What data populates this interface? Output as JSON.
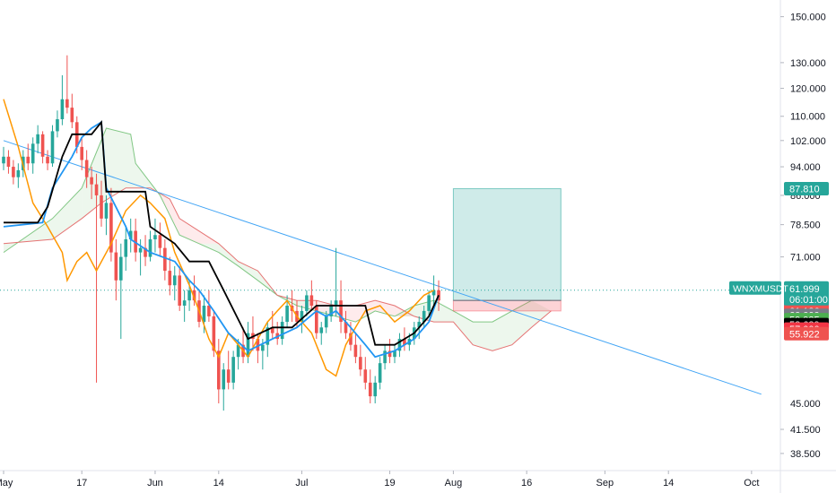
{
  "chart_data": {
    "type": "candlestick",
    "symbol": "WNXMUSDT",
    "countdown": "06:01:00",
    "y_scale": "log",
    "ylim": [
      36.5,
      158
    ],
    "x_tick_labels": [
      {
        "label": "May",
        "day": 0
      },
      {
        "label": "17",
        "day": 16
      },
      {
        "label": "Jun",
        "day": 31
      },
      {
        "label": "14",
        "day": 44
      },
      {
        "label": "Jul",
        "day": 61
      },
      {
        "label": "19",
        "day": 79
      },
      {
        "label": "Aug",
        "day": 92
      },
      {
        "label": "16",
        "day": 107
      },
      {
        "label": "Sep",
        "day": 123
      },
      {
        "label": "14",
        "day": 136
      },
      {
        "label": "Oct",
        "day": 153
      }
    ],
    "y_tick_labels": [
      "150.000",
      "130.000",
      "120.000",
      "110.000",
      "102.000",
      "94.000",
      "86.000",
      "78.500",
      "71.000",
      "41.500",
      "38.500"
    ],
    "price_badges": [
      {
        "label": "87.810",
        "value": 87.81,
        "color": "#26a69a"
      },
      {
        "label": "61.999",
        "value": 62.8,
        "color": "#ff9800"
      },
      {
        "label": "61.182",
        "value": 61.182,
        "color": "#2196f3"
      },
      {
        "label": "61.136",
        "value": 60.0,
        "color": "#ef5350"
      },
      {
        "label": "60.000",
        "value": 59.2,
        "color": "#787b86"
      },
      {
        "label": "59.935",
        "value": 58.4,
        "color": "#4caf50"
      },
      {
        "label": "58.689",
        "value": 57.5,
        "color": "#000000"
      },
      {
        "label": "57.000",
        "value": 56.7,
        "color": "#f23645"
      },
      {
        "label": "55.922",
        "value": 55.9,
        "color": "#ef5350"
      }
    ],
    "last_price": {
      "label": "61.999",
      "value": 64.0,
      "color": "#26a69a"
    },
    "label_45": {
      "label": "45.000",
      "value": 45.0
    },
    "trendline": {
      "x": [
        0,
        155
      ],
      "y": [
        102,
        46.3
      ]
    },
    "position": {
      "x_start": 92,
      "x_end": 114,
      "entry": 62.0,
      "target": 87.81,
      "stop": 60.0
    },
    "candles": [
      [
        0,
        95,
        100,
        93,
        97
      ],
      [
        1,
        97,
        99,
        92,
        94
      ],
      [
        2,
        94,
        96,
        89,
        91
      ],
      [
        3,
        91,
        95,
        88,
        93
      ],
      [
        4,
        93,
        99,
        91,
        97
      ],
      [
        5,
        97,
        101,
        93,
        95
      ],
      [
        6,
        95,
        103,
        92,
        101
      ],
      [
        7,
        101,
        107,
        98,
        104
      ],
      [
        8,
        104,
        105,
        95,
        97
      ],
      [
        9,
        97,
        99,
        93,
        95
      ],
      [
        10,
        95,
        107,
        94,
        105
      ],
      [
        11,
        105,
        112,
        103,
        109
      ],
      [
        12,
        109,
        125,
        107,
        116
      ],
      [
        13,
        116,
        133,
        111,
        113
      ],
      [
        14,
        113,
        118,
        106,
        108
      ],
      [
        15,
        108,
        110,
        98,
        100
      ],
      [
        16,
        100,
        103,
        93,
        96
      ],
      [
        17,
        96,
        99,
        88,
        91
      ],
      [
        18,
        91,
        94,
        85,
        89
      ],
      [
        19,
        89,
        92,
        48,
        86
      ],
      [
        20,
        86,
        90,
        78,
        80
      ],
      [
        21,
        80,
        86,
        76,
        84
      ],
      [
        22,
        84,
        88,
        70,
        72
      ],
      [
        23,
        72,
        75,
        62,
        66
      ],
      [
        24,
        66,
        74,
        55,
        71
      ],
      [
        25,
        71,
        78,
        68,
        75
      ],
      [
        26,
        75,
        80,
        72,
        77
      ],
      [
        27,
        77,
        80,
        70,
        72
      ],
      [
        28,
        72,
        75,
        67,
        73
      ],
      [
        29,
        73,
        76,
        69,
        71
      ],
      [
        30,
        71,
        77,
        70,
        75
      ],
      [
        31,
        75,
        80,
        72,
        76
      ],
      [
        32,
        76,
        79,
        71,
        73
      ],
      [
        33,
        73,
        75,
        66,
        68
      ],
      [
        34,
        68,
        71,
        63,
        65
      ],
      [
        35,
        65,
        69,
        62,
        67
      ],
      [
        36,
        67,
        69,
        60,
        61
      ],
      [
        37,
        61,
        64,
        58,
        62
      ],
      [
        38,
        62,
        66,
        60,
        64
      ],
      [
        39,
        64,
        67,
        61,
        62
      ],
      [
        40,
        62,
        64,
        57,
        58
      ],
      [
        41,
        58,
        63,
        56,
        61
      ],
      [
        42,
        61,
        64,
        58,
        59
      ],
      [
        43,
        59,
        60,
        52,
        53
      ],
      [
        44,
        53,
        55,
        45,
        47
      ],
      [
        45,
        47,
        51,
        44,
        50
      ],
      [
        46,
        50,
        53,
        47,
        48
      ],
      [
        47,
        48,
        53,
        47,
        52
      ],
      [
        48,
        52,
        55,
        50,
        54
      ],
      [
        49,
        54,
        57,
        51,
        52
      ],
      [
        50,
        52,
        58,
        51,
        56
      ],
      [
        51,
        56,
        59,
        53,
        55
      ],
      [
        52,
        55,
        56,
        51,
        53
      ],
      [
        53,
        53,
        55,
        50,
        54
      ],
      [
        54,
        54,
        58,
        52,
        57
      ],
      [
        55,
        57,
        60,
        55,
        56
      ],
      [
        56,
        56,
        58,
        54,
        55
      ],
      [
        57,
        55,
        59,
        54,
        58
      ],
      [
        58,
        58,
        63,
        57,
        61
      ],
      [
        59,
        61,
        64,
        58,
        60
      ],
      [
        60,
        60,
        62,
        57,
        58
      ],
      [
        61,
        58,
        61,
        56,
        60
      ],
      [
        62,
        60,
        64,
        59,
        63
      ],
      [
        63,
        63,
        66,
        60,
        61
      ],
      [
        64,
        61,
        62,
        55,
        56
      ],
      [
        65,
        56,
        58,
        54,
        57
      ],
      [
        66,
        57,
        60,
        56,
        59
      ],
      [
        67,
        59,
        62,
        58,
        61
      ],
      [
        68,
        61,
        73,
        59,
        62
      ],
      [
        69,
        62,
        66,
        56,
        58
      ],
      [
        70,
        58,
        60,
        55,
        56
      ],
      [
        71,
        56,
        58,
        53,
        54
      ],
      [
        72,
        54,
        56,
        51,
        52
      ],
      [
        73,
        52,
        54,
        49,
        50
      ],
      [
        74,
        50,
        52,
        47,
        48
      ],
      [
        75,
        48,
        50,
        45,
        46
      ],
      [
        76,
        46,
        49,
        45,
        48
      ],
      [
        77,
        48,
        52,
        47,
        51
      ],
      [
        78,
        51,
        54,
        50,
        53
      ],
      [
        79,
        53,
        55,
        51,
        52
      ],
      [
        80,
        52,
        54,
        51,
        53
      ],
      [
        81,
        53,
        56,
        52,
        55
      ],
      [
        82,
        55,
        57,
        53,
        54
      ],
      [
        83,
        54,
        56,
        53,
        55
      ],
      [
        84,
        55,
        58,
        54,
        57
      ],
      [
        85,
        57,
        59,
        55,
        58
      ],
      [
        86,
        58,
        61,
        57,
        60
      ],
      [
        87,
        60,
        64,
        59,
        63
      ],
      [
        88,
        63,
        67,
        61,
        64
      ],
      [
        89,
        64,
        66,
        60,
        62
      ]
    ],
    "tenkan": [
      [
        0,
        78
      ],
      [
        8,
        79
      ],
      [
        10,
        88
      ],
      [
        14,
        97
      ],
      [
        16,
        103
      ],
      [
        18,
        106
      ],
      [
        20,
        108
      ],
      [
        21,
        88
      ],
      [
        25,
        78
      ],
      [
        26,
        75
      ],
      [
        30,
        72
      ],
      [
        35,
        70
      ],
      [
        38,
        66
      ],
      [
        40,
        64
      ],
      [
        43,
        60
      ],
      [
        46,
        56
      ],
      [
        50,
        53
      ],
      [
        55,
        55
      ],
      [
        60,
        57
      ],
      [
        64,
        60
      ],
      [
        66,
        59
      ],
      [
        68,
        60
      ],
      [
        71,
        57
      ],
      [
        74,
        54
      ],
      [
        76,
        52
      ],
      [
        80,
        53
      ],
      [
        84,
        55
      ],
      [
        87,
        58
      ],
      [
        89,
        63
      ]
    ],
    "kijun": [
      [
        0,
        79
      ],
      [
        7,
        79
      ],
      [
        9,
        83
      ],
      [
        12,
        97
      ],
      [
        14,
        104
      ],
      [
        18,
        104
      ],
      [
        20,
        108
      ],
      [
        21,
        87
      ],
      [
        29,
        87
      ],
      [
        30,
        78
      ],
      [
        35,
        74
      ],
      [
        38,
        70
      ],
      [
        42,
        70
      ],
      [
        45,
        64
      ],
      [
        50,
        55
      ],
      [
        55,
        57
      ],
      [
        59,
        57
      ],
      [
        64,
        61
      ],
      [
        66,
        61
      ],
      [
        74,
        61
      ],
      [
        76,
        54
      ],
      [
        80,
        54
      ],
      [
        84,
        56
      ],
      [
        87,
        59
      ],
      [
        89,
        63
      ]
    ],
    "chikou": [
      [
        0,
        116
      ],
      [
        3,
        100
      ],
      [
        6,
        84
      ],
      [
        9,
        78
      ],
      [
        12,
        72
      ],
      [
        13,
        66
      ],
      [
        15,
        70
      ],
      [
        17,
        72
      ],
      [
        19,
        68
      ],
      [
        22,
        74
      ],
      [
        25,
        82
      ],
      [
        28,
        86
      ],
      [
        30,
        84
      ],
      [
        33,
        80
      ],
      [
        35,
        72
      ],
      [
        38,
        65
      ],
      [
        40,
        60
      ],
      [
        42,
        55
      ],
      [
        44,
        52
      ],
      [
        46,
        56
      ],
      [
        48,
        54
      ],
      [
        50,
        52
      ],
      [
        52,
        55
      ],
      [
        54,
        58
      ],
      [
        56,
        60
      ],
      [
        58,
        62
      ],
      [
        60,
        59
      ],
      [
        63,
        56
      ],
      [
        66,
        50
      ],
      [
        68,
        49
      ],
      [
        70,
        54
      ],
      [
        72,
        57
      ],
      [
        74,
        60
      ],
      [
        77,
        61
      ],
      [
        80,
        58
      ],
      [
        83,
        60
      ],
      [
        86,
        63
      ],
      [
        88,
        64
      ]
    ],
    "span_a": [
      [
        0,
        72
      ],
      [
        10,
        80
      ],
      [
        16,
        88
      ],
      [
        21,
        106
      ],
      [
        26,
        104
      ],
      [
        27,
        95
      ],
      [
        32,
        86
      ],
      [
        36,
        76
      ],
      [
        40,
        74
      ],
      [
        44,
        72
      ],
      [
        48,
        69
      ],
      [
        52,
        66
      ],
      [
        56,
        63
      ],
      [
        60,
        61
      ],
      [
        64,
        60
      ],
      [
        68,
        59
      ],
      [
        72,
        58
      ],
      [
        76,
        60
      ],
      [
        80,
        59
      ],
      [
        84,
        61
      ],
      [
        88,
        62
      ],
      [
        92,
        60
      ],
      [
        96,
        58
      ],
      [
        100,
        58
      ],
      [
        104,
        60
      ],
      [
        108,
        62
      ],
      [
        112,
        62
      ]
    ],
    "span_b": [
      [
        0,
        74
      ],
      [
        10,
        75
      ],
      [
        16,
        80
      ],
      [
        20,
        84
      ],
      [
        25,
        88
      ],
      [
        30,
        88
      ],
      [
        34,
        85
      ],
      [
        36,
        80
      ],
      [
        44,
        74
      ],
      [
        48,
        70
      ],
      [
        52,
        68
      ],
      [
        56,
        63
      ],
      [
        60,
        62
      ],
      [
        64,
        62
      ],
      [
        68,
        61
      ],
      [
        72,
        61
      ],
      [
        76,
        62
      ],
      [
        80,
        61
      ],
      [
        84,
        59
      ],
      [
        88,
        58
      ],
      [
        92,
        58
      ],
      [
        96,
        54
      ],
      [
        100,
        53
      ],
      [
        104,
        54
      ],
      [
        108,
        57
      ],
      [
        112,
        60
      ]
    ]
  }
}
